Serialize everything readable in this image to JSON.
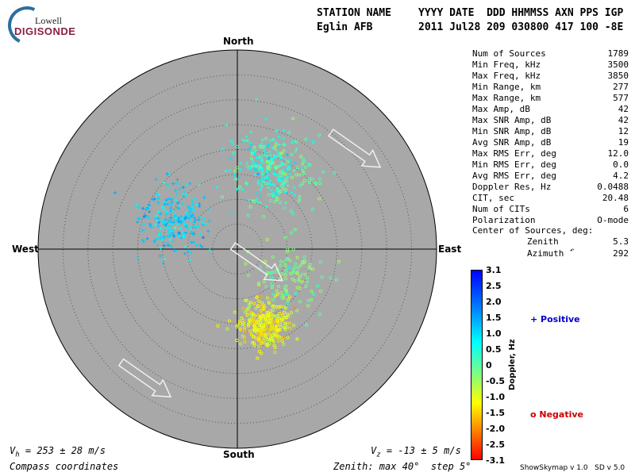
{
  "logo": {
    "top": "Lowell",
    "main": "DIGISONDE"
  },
  "header": {
    "station_label": "STATION NAME",
    "station": "Eglin AFB",
    "fields_label": "YYYY DATE  DDD HHMMSS AXN PPS IGP",
    "fields_value": "2011 Jul28 209 030800 417 100 -8E"
  },
  "stats": [
    {
      "label": "Num of Sources",
      "value": "1789"
    },
    {
      "label": "Min Freq, kHz",
      "value": "3500"
    },
    {
      "label": "Max Freq, kHz",
      "value": "3850"
    },
    {
      "label": "Min Range, km",
      "value": "277"
    },
    {
      "label": "Max Range, km",
      "value": "577"
    },
    {
      "label": "Max Amp, dB",
      "value": "42"
    },
    {
      "label": "Max SNR Amp, dB",
      "value": "42"
    },
    {
      "label": "Min SNR Amp, dB",
      "value": "12"
    },
    {
      "label": "Avg SNR Amp, dB",
      "value": "19"
    },
    {
      "label": "Max RMS Err, deg",
      "value": "12.0"
    },
    {
      "label": "Min RMS Err, deg",
      "value": "0.0"
    },
    {
      "label": "Avg RMS Err, deg",
      "value": "4.2"
    },
    {
      "label": "Doppler Res, Hz",
      "value": "0.0488"
    },
    {
      "label": "CIT, sec",
      "value": "20.48"
    },
    {
      "label": "Num of CITs",
      "value": "6"
    },
    {
      "label": "Polarization",
      "value": "O-mode"
    }
  ],
  "center": {
    "title": "Center of Sources, deg:",
    "zenith_label": "Zenith",
    "zenith": "5.3",
    "azimuth_label": "Azimuth",
    "azimuth": "292"
  },
  "compass": {
    "north": "North",
    "south": "South",
    "east": "East",
    "west": "West"
  },
  "footer": {
    "vh": "V",
    "vh_sub": "h",
    "vh_rest": " = 253 ± 28 m/s",
    "vz": "V",
    "vz_sub": "z",
    "vz_rest": " = -13 ± 5 m/s",
    "coords": "Compass coordinates",
    "zenith_info": "Zenith: max 40°  step 5°",
    "version": "ShowSkymap v 1.0   SD v 5.0"
  },
  "legend": {
    "axis_label": "Doppler, Hz",
    "positive": "+ Positive",
    "negative": "o Negative"
  },
  "colors": {
    "plot_bg": "#a8a8a8",
    "positive": "#0000cc",
    "negative": "#cc0000"
  },
  "chart_data": {
    "type": "scatter",
    "projection": "polar-skymap",
    "zenith_max_deg": 40,
    "zenith_step_deg": 5,
    "colorbar": {
      "min": -3.1,
      "max": 3.1,
      "ticks": [
        "3.1",
        "2.5",
        "2.0",
        "1.5",
        "1.0",
        "0.5",
        "0",
        "-0.5",
        "-1.0",
        "-1.5",
        "-2.0",
        "-2.5",
        "-3.1"
      ]
    },
    "clusters": [
      {
        "name": "positive",
        "marker": "+",
        "zenith": 14,
        "azimuth": 295,
        "spread": 3.5,
        "count": 260,
        "doppler": 1.1
      },
      {
        "name": "positive",
        "marker": "+",
        "zenith": 17,
        "azimuth": 20,
        "spread": 3.5,
        "count": 220,
        "doppler": 0.6
      },
      {
        "name": "negative",
        "marker": "o",
        "zenith": 16,
        "azimuth": 160,
        "spread": 2.5,
        "count": 300,
        "doppler": -1.2
      },
      {
        "name": "negative",
        "marker": "o",
        "zenith": 12,
        "azimuth": 115,
        "spread": 3.5,
        "count": 110,
        "doppler": -0.3
      },
      {
        "name": "negative",
        "marker": "o",
        "zenith": 18,
        "azimuth": 30,
        "spread": 4,
        "count": 110,
        "doppler": -0.1
      }
    ],
    "arrows": [
      {
        "zenith": 31,
        "azimuth": 50,
        "direction": 125
      },
      {
        "zenith": 5,
        "azimuth": 125,
        "direction": 125
      },
      {
        "zenith": 32,
        "azimuth": 215,
        "direction": 125
      }
    ]
  }
}
